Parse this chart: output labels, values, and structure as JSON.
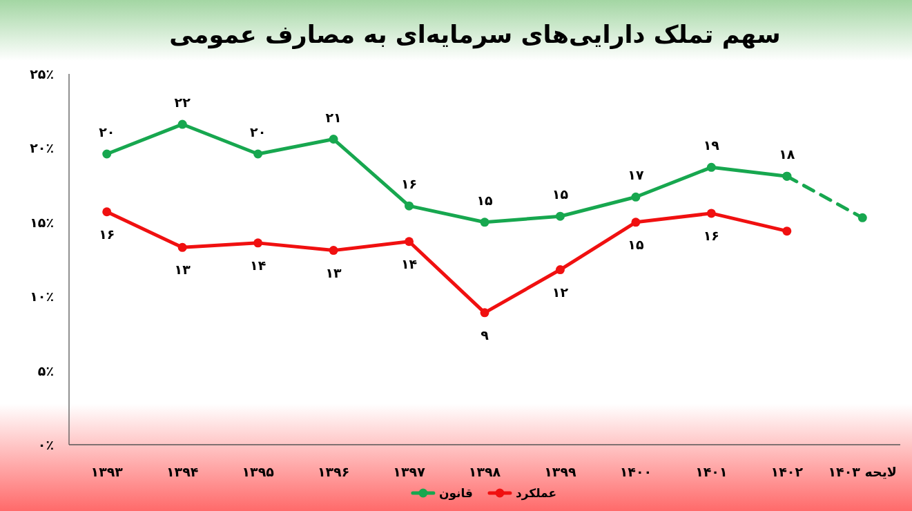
{
  "chart_data": {
    "type": "line",
    "title": "سهم تملک دارایی‌های سرمایه‌ای به مصارف عمومی",
    "categories": [
      "۱۳۹۳",
      "۱۳۹۴",
      "۱۳۹۵",
      "۱۳۹۶",
      "۱۳۹۷",
      "۱۳۹۸",
      "۱۳۹۹",
      "۱۴۰۰",
      "۱۴۰۱",
      "۱۴۰۲",
      "لایحه ۱۴۰۳"
    ],
    "series": [
      {
        "name": "قانون",
        "color": "#17a74f",
        "values": [
          19.6,
          21.6,
          19.6,
          20.6,
          16.1,
          15.0,
          15.4,
          16.7,
          18.7,
          18.1,
          null
        ],
        "value_labels": [
          "۲۰",
          "۲۲",
          "۲۰",
          "۲۱",
          "۱۶",
          "۱۵",
          "۱۵",
          "۱۷",
          "۱۹",
          "۱۸",
          null
        ]
      },
      {
        "name": "عملکرد",
        "color": "#f01010",
        "values": [
          15.7,
          13.3,
          13.6,
          13.1,
          13.7,
          8.9,
          11.8,
          15.0,
          15.6,
          14.4,
          null
        ],
        "value_labels": [
          "۱۶",
          "۱۳",
          "۱۴",
          "۱۳",
          "۱۴",
          "۹",
          "۱۲",
          "۱۵",
          "۱۶",
          null,
          null
        ]
      },
      {
        "color": "#17a74f",
        "line_style": "dashed",
        "values": [
          null,
          null,
          null,
          null,
          null,
          null,
          null,
          null,
          null,
          18.1,
          15.3
        ]
      }
    ],
    "ylim": [
      0,
      25
    ],
    "yticks": [
      {
        "value": 0,
        "label": "۰٪"
      },
      {
        "value": 5,
        "label": "۵٪"
      },
      {
        "value": 10,
        "label": "۱۰٪"
      },
      {
        "value": 15,
        "label": "۱۵٪"
      },
      {
        "value": 20,
        "label": "۲۰٪"
      },
      {
        "value": 25,
        "label": "۲۵٪"
      }
    ],
    "legend": "bottom",
    "marker": "circle",
    "line_style": "solid"
  }
}
